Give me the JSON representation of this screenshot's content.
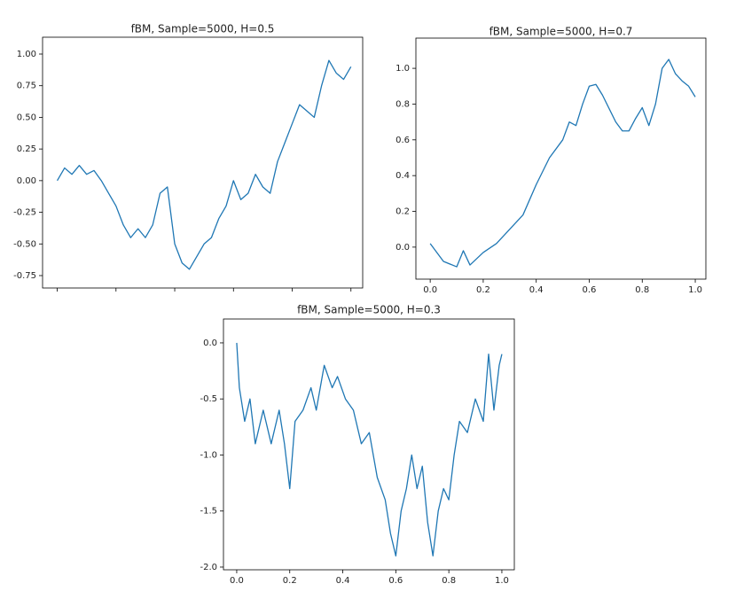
{
  "chart_data": [
    {
      "type": "line",
      "title": "fBM, Sample=5000, H=0.5",
      "color": "#1f77b4",
      "x": [
        0,
        0.025,
        0.05,
        0.075,
        0.1,
        0.125,
        0.15,
        0.175,
        0.2,
        0.225,
        0.25,
        0.275,
        0.3,
        0.325,
        0.35,
        0.375,
        0.4,
        0.425,
        0.45,
        0.475,
        0.5,
        0.525,
        0.55,
        0.575,
        0.6,
        0.625,
        0.65,
        0.675,
        0.7,
        0.725,
        0.75,
        0.775,
        0.8,
        0.825,
        0.85,
        0.875,
        0.9,
        0.925,
        0.95,
        0.975,
        1.0
      ],
      "values": [
        0.0,
        0.1,
        0.05,
        0.12,
        0.05,
        0.08,
        0.0,
        -0.1,
        -0.2,
        -0.35,
        -0.45,
        -0.38,
        -0.45,
        -0.35,
        -0.1,
        -0.05,
        -0.5,
        -0.65,
        -0.7,
        -0.6,
        -0.5,
        -0.45,
        -0.3,
        -0.2,
        0.0,
        -0.15,
        -0.1,
        0.05,
        -0.05,
        -0.1,
        0.15,
        0.3,
        0.45,
        0.6,
        0.55,
        0.5,
        0.75,
        0.95,
        0.85,
        0.8,
        0.9
      ],
      "xlim": [
        -0.05,
        1.04
      ],
      "ylim": [
        -0.848,
        1.133
      ],
      "xticks": [
        0,
        0.2,
        0.4,
        0.6,
        0.8,
        1.0
      ],
      "xtick_labels": false,
      "yticks": [
        {
          "value": -0.75,
          "label": "-0.75"
        },
        {
          "value": -0.5,
          "label": "-0.50"
        },
        {
          "value": -0.25,
          "label": "-0.25"
        },
        {
          "value": 0,
          "label": "0.00"
        },
        {
          "value": 0.25,
          "label": "0.25"
        },
        {
          "value": 0.5,
          "label": "0.50"
        },
        {
          "value": 0.75,
          "label": "0.75"
        },
        {
          "value": 1,
          "label": "1.00"
        }
      ]
    },
    {
      "type": "line",
      "title": "fBM, Sample=5000, H=0.7",
      "color": "#1f77b4",
      "x": [
        0,
        0.05,
        0.1,
        0.125,
        0.15,
        0.2,
        0.25,
        0.3,
        0.35,
        0.4,
        0.45,
        0.5,
        0.525,
        0.55,
        0.575,
        0.6,
        0.625,
        0.65,
        0.7,
        0.725,
        0.75,
        0.775,
        0.8,
        0.825,
        0.85,
        0.875,
        0.9,
        0.925,
        0.95,
        0.975,
        1.0
      ],
      "values": [
        0.02,
        -0.08,
        -0.11,
        -0.02,
        -0.1,
        -0.03,
        0.02,
        0.1,
        0.18,
        0.35,
        0.5,
        0.6,
        0.7,
        0.68,
        0.8,
        0.9,
        0.91,
        0.85,
        0.7,
        0.65,
        0.65,
        0.72,
        0.78,
        0.68,
        0.8,
        1.0,
        1.05,
        0.97,
        0.93,
        0.9,
        0.84
      ],
      "xlim": [
        -0.054,
        1.04
      ],
      "ylim": [
        -0.179,
        1.169
      ],
      "xticks": [
        {
          "value": 0,
          "label": "0.0"
        },
        0.2,
        0.4,
        0.6,
        0.8,
        {
          "value": 1,
          "label": "1.0"
        }
      ],
      "xtick_labels": true,
      "yticks": [
        {
          "value": 0,
          "label": "0.0"
        },
        0.2,
        0.4,
        0.6,
        0.8,
        {
          "value": 1,
          "label": "1.0"
        }
      ]
    },
    {
      "type": "line",
      "title": "fBM, Sample=5000, H=0.3",
      "color": "#1f77b4",
      "x": [
        0,
        0.01,
        0.03,
        0.05,
        0.07,
        0.1,
        0.13,
        0.16,
        0.18,
        0.2,
        0.22,
        0.25,
        0.28,
        0.3,
        0.33,
        0.36,
        0.38,
        0.41,
        0.44,
        0.47,
        0.5,
        0.53,
        0.56,
        0.58,
        0.6,
        0.62,
        0.64,
        0.66,
        0.68,
        0.7,
        0.72,
        0.74,
        0.76,
        0.78,
        0.8,
        0.82,
        0.84,
        0.87,
        0.9,
        0.93,
        0.95,
        0.97,
        0.99,
        1.0
      ],
      "values": [
        0.0,
        -0.4,
        -0.7,
        -0.5,
        -0.9,
        -0.6,
        -0.9,
        -0.6,
        -0.9,
        -1.3,
        -0.7,
        -0.6,
        -0.4,
        -0.6,
        -0.2,
        -0.4,
        -0.3,
        -0.5,
        -0.6,
        -0.9,
        -0.8,
        -1.2,
        -1.4,
        -1.7,
        -1.9,
        -1.5,
        -1.3,
        -1.0,
        -1.3,
        -1.1,
        -1.6,
        -1.9,
        -1.5,
        -1.3,
        -1.4,
        -1.0,
        -0.7,
        -0.8,
        -0.5,
        -0.7,
        -0.1,
        -0.6,
        -0.2,
        -0.1
      ],
      "xlim": [
        -0.05,
        1.047
      ],
      "ylim": [
        -2.024,
        0.213
      ],
      "xticks": [
        {
          "value": 0,
          "label": "0.0"
        },
        0.2,
        0.4,
        0.6,
        0.8,
        {
          "value": 1,
          "label": "1.0"
        }
      ],
      "xtick_labels": true,
      "yticks": [
        {
          "value": -2,
          "label": "-2.0"
        },
        -1.5,
        {
          "value": -1,
          "label": "-1.0"
        },
        -0.5,
        {
          "value": 0,
          "label": "0.0"
        }
      ]
    }
  ]
}
